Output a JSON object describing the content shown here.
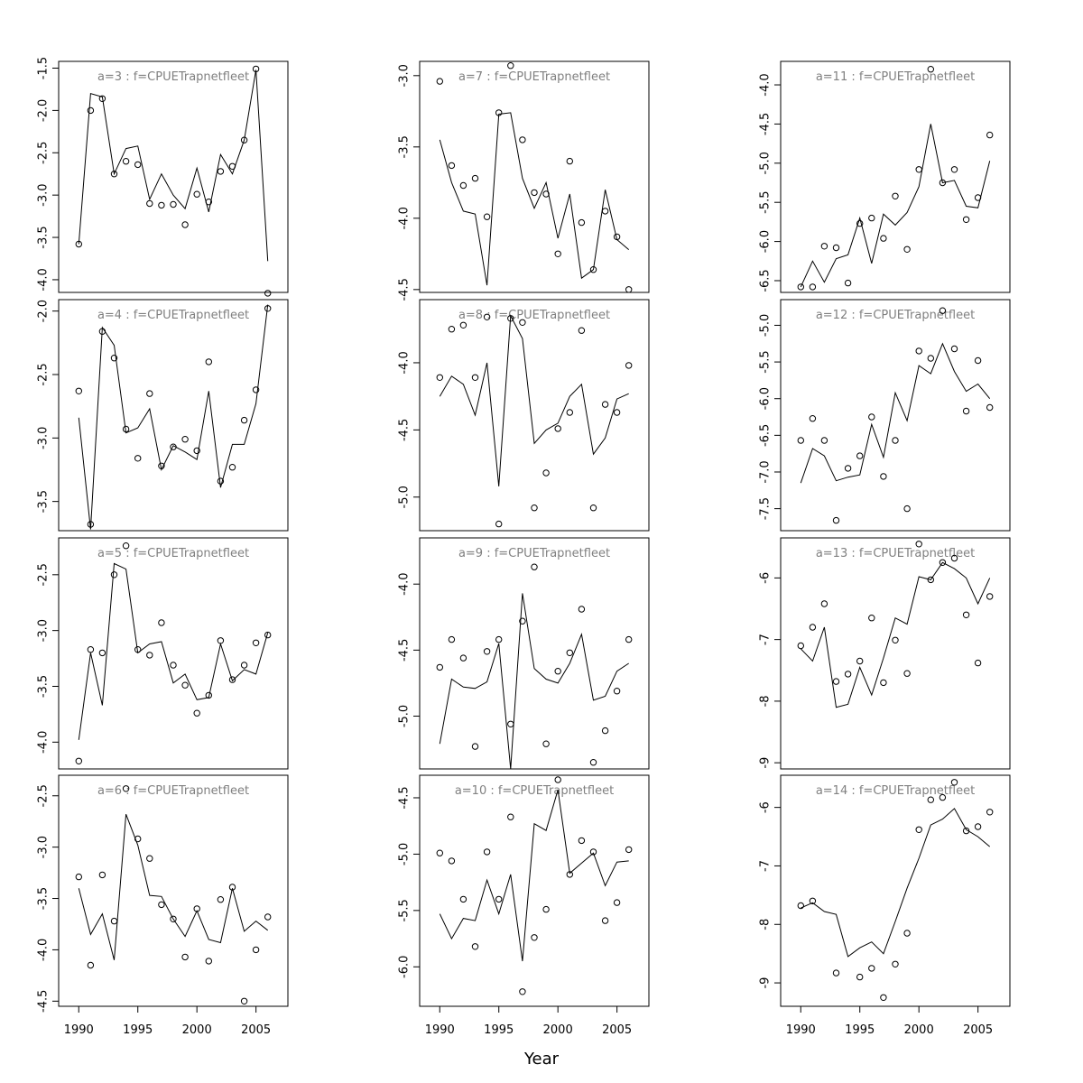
{
  "chart_data": {
    "type": "line",
    "xlabel": "Year",
    "x_ticks": [
      1990,
      1995,
      2000,
      2005
    ],
    "xlim": [
      1988.3,
      2007.7
    ],
    "years": [
      1990,
      1991,
      1992,
      1993,
      1994,
      1995,
      1996,
      1997,
      1998,
      1999,
      2000,
      2001,
      2002,
      2003,
      2004,
      2005,
      2006
    ],
    "panels": [
      {
        "title": "a=3  :  f=CPUETrapnetfleet",
        "ylim": [
          -4.15,
          -1.42
        ],
        "y_ticks": [
          -1.5,
          -2.0,
          -2.5,
          -3.0,
          -3.5,
          -4.0
        ],
        "fitted": [
          -3.58,
          -1.8,
          -1.84,
          -2.75,
          -2.45,
          -2.42,
          -3.05,
          -2.75,
          -3.0,
          -3.16,
          -2.68,
          -3.2,
          -2.52,
          -2.75,
          -2.35,
          -1.52,
          -3.78
        ],
        "observed": [
          -3.58,
          -2.0,
          -1.86,
          -2.75,
          -2.6,
          -2.64,
          -3.1,
          -3.12,
          -3.11,
          -3.35,
          -2.99,
          -3.08,
          -2.72,
          -2.66,
          -2.35,
          -1.51,
          -4.16
        ]
      },
      {
        "title": "a=7  :  f=CPUETrapnetfleet",
        "ylim": [
          -4.52,
          -2.9
        ],
        "y_ticks": [
          -3.0,
          -3.5,
          -4.0,
          -4.5
        ],
        "fitted": [
          -3.45,
          -3.75,
          -3.95,
          -3.97,
          -4.47,
          -3.27,
          -3.26,
          -3.72,
          -3.93,
          -3.75,
          -4.14,
          -3.83,
          -4.42,
          -4.36,
          -3.8,
          -4.15,
          -4.22
        ],
        "observed": [
          -3.04,
          -3.63,
          -3.77,
          -3.72,
          -3.99,
          -3.26,
          -2.93,
          -3.45,
          -3.82,
          -3.83,
          -4.25,
          -3.6,
          -4.03,
          -4.36,
          -3.95,
          -4.13,
          -4.5
        ]
      },
      {
        "title": "a=11  :  f=CPUETrapnetfleet",
        "ylim": [
          -6.65,
          -3.7
        ],
        "y_ticks": [
          -4.0,
          -4.5,
          -5.0,
          -5.5,
          -6.0,
          -6.5
        ],
        "fitted": [
          -6.58,
          -6.25,
          -6.52,
          -6.22,
          -6.17,
          -5.7,
          -6.28,
          -5.65,
          -5.79,
          -5.63,
          -5.3,
          -4.5,
          -5.25,
          -5.22,
          -5.55,
          -5.57,
          -4.97
        ],
        "observed": [
          -6.58,
          -6.58,
          -6.06,
          -6.08,
          -6.53,
          -5.77,
          -5.7,
          -5.96,
          -5.42,
          -6.1,
          -5.08,
          -3.8,
          -5.25,
          -5.08,
          -5.72,
          -5.44,
          -4.64
        ]
      },
      {
        "title": "a=4  :  f=CPUETrapnetfleet",
        "ylim": [
          -3.73,
          -1.91
        ],
        "y_ticks": [
          -2.0,
          -2.5,
          -3.0,
          -3.5
        ],
        "fitted": [
          -2.84,
          -3.72,
          -2.13,
          -2.27,
          -2.96,
          -2.92,
          -2.77,
          -3.25,
          -3.06,
          -3.11,
          -3.17,
          -2.63,
          -3.39,
          -3.05,
          -3.05,
          -2.73,
          -1.95
        ],
        "observed": [
          -2.63,
          -3.68,
          -2.16,
          -2.37,
          -2.93,
          -3.16,
          -2.65,
          -3.22,
          -3.07,
          -3.01,
          -3.1,
          -2.4,
          -3.34,
          -3.23,
          -2.86,
          -2.62,
          -1.98
        ]
      },
      {
        "title": "a=8  :  f=CPUETrapnetfleet",
        "ylim": [
          -5.25,
          -3.53
        ],
        "y_ticks": [
          -4.0,
          -4.5,
          -5.0
        ],
        "fitted": [
          -4.25,
          -4.1,
          -4.16,
          -4.39,
          -4.0,
          -4.92,
          -3.65,
          -3.82,
          -4.6,
          -4.5,
          -4.45,
          -4.25,
          -4.16,
          -4.68,
          -4.56,
          -4.27,
          -4.23
        ],
        "observed": [
          -4.11,
          -3.75,
          -3.72,
          -4.11,
          -3.66,
          -5.2,
          -3.67,
          -3.7,
          -5.08,
          -4.82,
          -4.49,
          -4.37,
          -3.76,
          -5.08,
          -4.31,
          -4.37,
          -4.02
        ]
      },
      {
        "title": "a=12  :  f=CPUETrapnetfleet",
        "ylim": [
          -7.8,
          -4.65
        ],
        "y_ticks": [
          -5.0,
          -5.5,
          -6.0,
          -6.5,
          -7.0,
          -7.5
        ],
        "fitted": [
          -7.15,
          -6.68,
          -6.78,
          -7.12,
          -7.07,
          -7.04,
          -6.35,
          -6.8,
          -5.92,
          -6.3,
          -5.55,
          -5.66,
          -5.25,
          -5.63,
          -5.9,
          -5.8,
          -6.0
        ],
        "observed": [
          -6.57,
          -6.27,
          -6.57,
          -7.66,
          -6.95,
          -6.78,
          -6.25,
          -7.06,
          -6.57,
          -7.5,
          -5.35,
          -5.45,
          -4.8,
          -5.32,
          -6.17,
          -5.48,
          -6.12
        ]
      },
      {
        "title": "a=5  :  f=CPUETrapnetfleet",
        "ylim": [
          -4.24,
          -2.17
        ],
        "y_ticks": [
          -2.5,
          -3.0,
          -3.5,
          -4.0
        ],
        "fitted": [
          -3.98,
          -3.2,
          -3.67,
          -2.4,
          -2.45,
          -3.2,
          -3.12,
          -3.1,
          -3.47,
          -3.39,
          -3.62,
          -3.6,
          -3.12,
          -3.45,
          -3.35,
          -3.39,
          -3.02
        ],
        "observed": [
          -4.17,
          -3.17,
          -3.2,
          -2.5,
          -2.24,
          -3.17,
          -3.22,
          -2.93,
          -3.31,
          -3.49,
          -3.74,
          -3.58,
          -3.09,
          -3.44,
          -3.31,
          -3.11,
          -3.04
        ]
      },
      {
        "title": "a=9  :  f=CPUETrapnetfleet",
        "ylim": [
          -5.4,
          -3.65
        ],
        "y_ticks": [
          -4.0,
          -4.5,
          -5.0
        ],
        "fitted": [
          -5.21,
          -4.72,
          -4.78,
          -4.79,
          -4.74,
          -4.45,
          -5.4,
          -4.07,
          -4.64,
          -4.72,
          -4.75,
          -4.6,
          -4.38,
          -4.88,
          -4.85,
          -4.66,
          -4.6
        ],
        "observed": [
          -4.63,
          -4.42,
          -4.56,
          -5.23,
          -4.51,
          -4.42,
          -5.06,
          -4.28,
          -3.87,
          -5.21,
          -4.66,
          -4.52,
          -4.19,
          -5.35,
          -5.11,
          -4.81,
          -4.42
        ]
      },
      {
        "title": "a=13  :  f=CPUETrapnetfleet",
        "ylim": [
          -9.1,
          -5.35
        ],
        "y_ticks": [
          -6.0,
          -7.0,
          -8.0,
          -9.0
        ],
        "fitted": [
          -7.15,
          -7.35,
          -6.8,
          -8.1,
          -8.05,
          -7.45,
          -7.9,
          -7.3,
          -6.65,
          -6.75,
          -5.98,
          -6.03,
          -5.75,
          -5.85,
          -6.0,
          -6.42,
          -6.0
        ],
        "observed": [
          -7.1,
          -6.8,
          -6.42,
          -7.68,
          -7.56,
          -7.35,
          -6.65,
          -7.7,
          -7.01,
          -7.55,
          -5.45,
          -6.03,
          -5.75,
          -5.68,
          -6.6,
          -7.38,
          -6.3
        ]
      },
      {
        "title": "a=6  :  f=CPUETrapnetfleet",
        "ylim": [
          -4.55,
          -2.3
        ],
        "y_ticks": [
          -2.5,
          -3.0,
          -3.5,
          -4.0,
          -4.5
        ],
        "fitted": [
          -3.4,
          -3.85,
          -3.65,
          -4.1,
          -2.68,
          -2.98,
          -3.47,
          -3.48,
          -3.7,
          -3.87,
          -3.62,
          -3.9,
          -3.93,
          -3.4,
          -3.82,
          -3.72,
          -3.81
        ],
        "observed": [
          -3.29,
          -4.15,
          -3.27,
          -3.72,
          -2.43,
          -2.92,
          -3.11,
          -3.56,
          -3.7,
          -4.07,
          -3.6,
          -4.11,
          -3.51,
          -3.39,
          -4.5,
          -4.0,
          -3.68
        ]
      },
      {
        "title": "a=10  :  f=CPUETrapnetfleet",
        "ylim": [
          -6.35,
          -4.3
        ],
        "y_ticks": [
          -4.5,
          -5.0,
          -5.5,
          -6.0
        ],
        "fitted": [
          -5.53,
          -5.75,
          -5.57,
          -5.59,
          -5.23,
          -5.53,
          -5.18,
          -5.95,
          -4.73,
          -4.79,
          -4.43,
          -5.17,
          -5.08,
          -4.99,
          -5.28,
          -5.07,
          -5.06
        ],
        "observed": [
          -4.99,
          -5.06,
          -5.4,
          -5.82,
          -4.98,
          -5.4,
          -4.67,
          -6.22,
          -5.74,
          -5.49,
          -4.34,
          -5.18,
          -4.88,
          -4.98,
          -5.59,
          -5.43,
          -4.96
        ]
      },
      {
        "title": "a=14  :  f=CPUETrapnetfleet",
        "ylim": [
          -9.4,
          -5.45
        ],
        "y_ticks": [
          -6,
          -7,
          -8,
          -9
        ],
        "fitted": [
          -7.72,
          -7.63,
          -7.78,
          -7.83,
          -8.55,
          -8.4,
          -8.3,
          -8.5,
          -7.95,
          -7.38,
          -6.87,
          -6.3,
          -6.2,
          -6.02,
          -6.38,
          -6.5,
          -6.67
        ],
        "observed": [
          -7.68,
          -7.6,
          null,
          -8.83,
          null,
          -8.9,
          -8.75,
          -9.25,
          -8.68,
          -8.15,
          -6.38,
          -5.87,
          -5.83,
          -5.57,
          -6.4,
          -6.33,
          -6.08
        ]
      }
    ]
  }
}
